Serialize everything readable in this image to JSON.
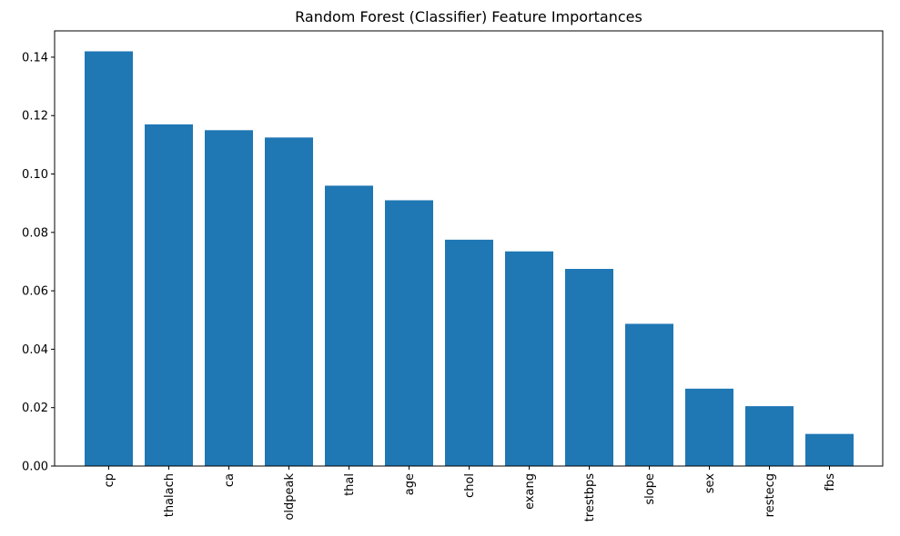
{
  "chart_data": {
    "type": "bar",
    "title": "Random Forest (Classifier) Feature Importances",
    "xlabel": "",
    "ylabel": "",
    "categories": [
      "cp",
      "thalach",
      "ca",
      "oldpeak",
      "thal",
      "age",
      "chol",
      "exang",
      "trestbps",
      "slope",
      "sex",
      "restecg",
      "fbs"
    ],
    "values": [
      0.142,
      0.117,
      0.115,
      0.1125,
      0.096,
      0.091,
      0.0775,
      0.0735,
      0.0675,
      0.0487,
      0.0265,
      0.0205,
      0.011
    ],
    "ylim": [
      0,
      0.149
    ],
    "yticks": [
      0.0,
      0.02,
      0.04,
      0.06,
      0.08,
      0.1,
      0.12,
      0.14
    ],
    "ytick_labels": [
      "0.00",
      "0.02",
      "0.04",
      "0.06",
      "0.08",
      "0.10",
      "0.12",
      "0.14"
    ],
    "bar_color": "#1f77b4",
    "x_tick_rotation": "vertical",
    "grid": false,
    "legend": "none"
  }
}
